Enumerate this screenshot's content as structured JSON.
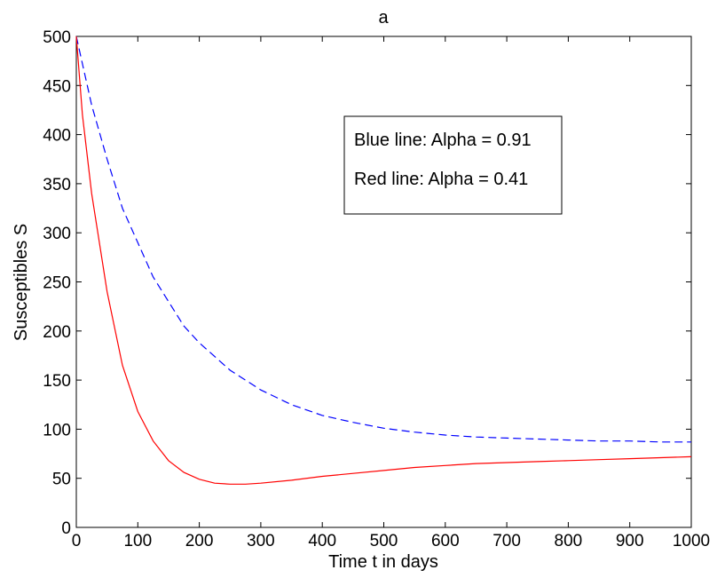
{
  "chart_data": {
    "type": "line",
    "title": "a",
    "xlabel": "Time t in days",
    "ylabel": "Susceptibles S",
    "xlim": [
      0,
      1000
    ],
    "ylim": [
      0,
      500
    ],
    "xticks": [
      0,
      100,
      200,
      300,
      400,
      500,
      600,
      700,
      800,
      900,
      1000
    ],
    "yticks": [
      0,
      50,
      100,
      150,
      200,
      250,
      300,
      350,
      400,
      450,
      500
    ],
    "grid": false,
    "legend": {
      "placement": "top-right",
      "entries": [
        "Blue line: Alpha = 0.91",
        "Red line: Alpha = 0.41"
      ]
    },
    "series": [
      {
        "color": "#0000ff",
        "style": "dashed",
        "x": [
          0,
          25,
          50,
          75,
          100,
          125,
          150,
          175,
          200,
          250,
          300,
          350,
          400,
          450,
          500,
          550,
          600,
          650,
          700,
          750,
          800,
          850,
          900,
          950,
          1000
        ],
        "y": [
          500,
          430,
          375,
          325,
          290,
          255,
          230,
          205,
          188,
          160,
          140,
          125,
          114,
          107,
          101,
          97,
          94,
          92,
          91,
          90,
          89,
          88,
          88,
          87,
          87
        ]
      },
      {
        "color": "#ff0000",
        "style": "solid",
        "x": [
          0,
          10,
          25,
          50,
          75,
          100,
          125,
          150,
          175,
          200,
          225,
          250,
          275,
          300,
          350,
          400,
          450,
          500,
          550,
          600,
          650,
          700,
          750,
          800,
          850,
          900,
          950,
          1000
        ],
        "y": [
          500,
          420,
          340,
          240,
          165,
          118,
          88,
          68,
          56,
          49,
          45,
          44,
          44,
          45,
          48,
          52,
          55,
          58,
          61,
          63,
          65,
          66,
          67,
          68,
          69,
          70,
          71,
          72
        ]
      }
    ]
  }
}
